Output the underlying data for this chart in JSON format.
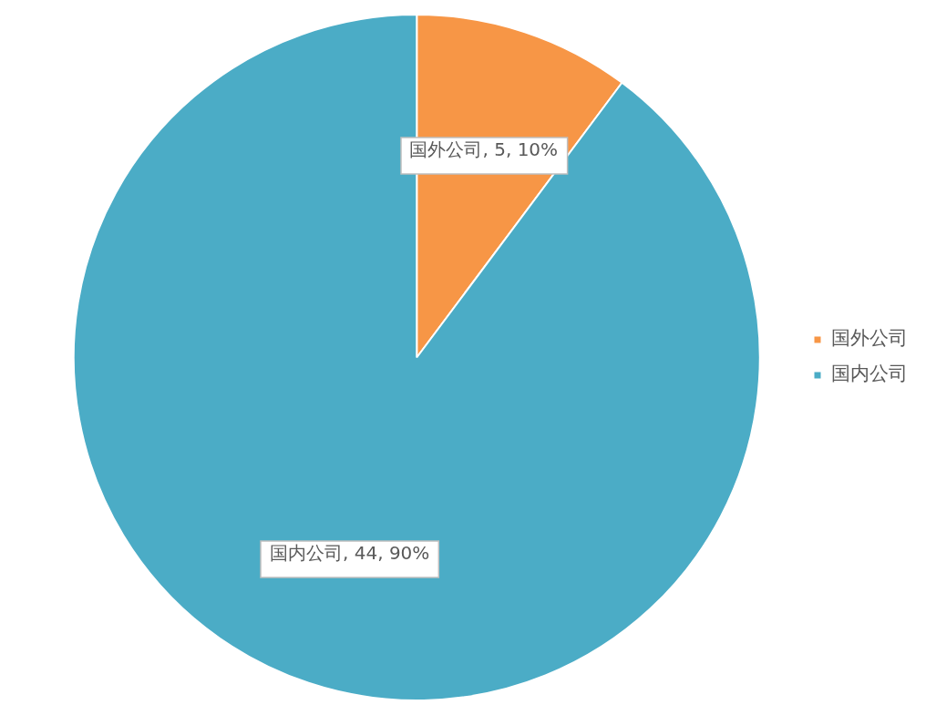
{
  "chart_data": {
    "type": "pie",
    "categories": [
      "国外公司",
      "国内公司"
    ],
    "values": [
      5,
      44
    ],
    "colors": [
      "#f79646",
      "#4bacc6"
    ],
    "value_labels": [
      "国外公司, 5, 10%",
      "国内公司, 44, 90%"
    ],
    "legend": "right"
  }
}
